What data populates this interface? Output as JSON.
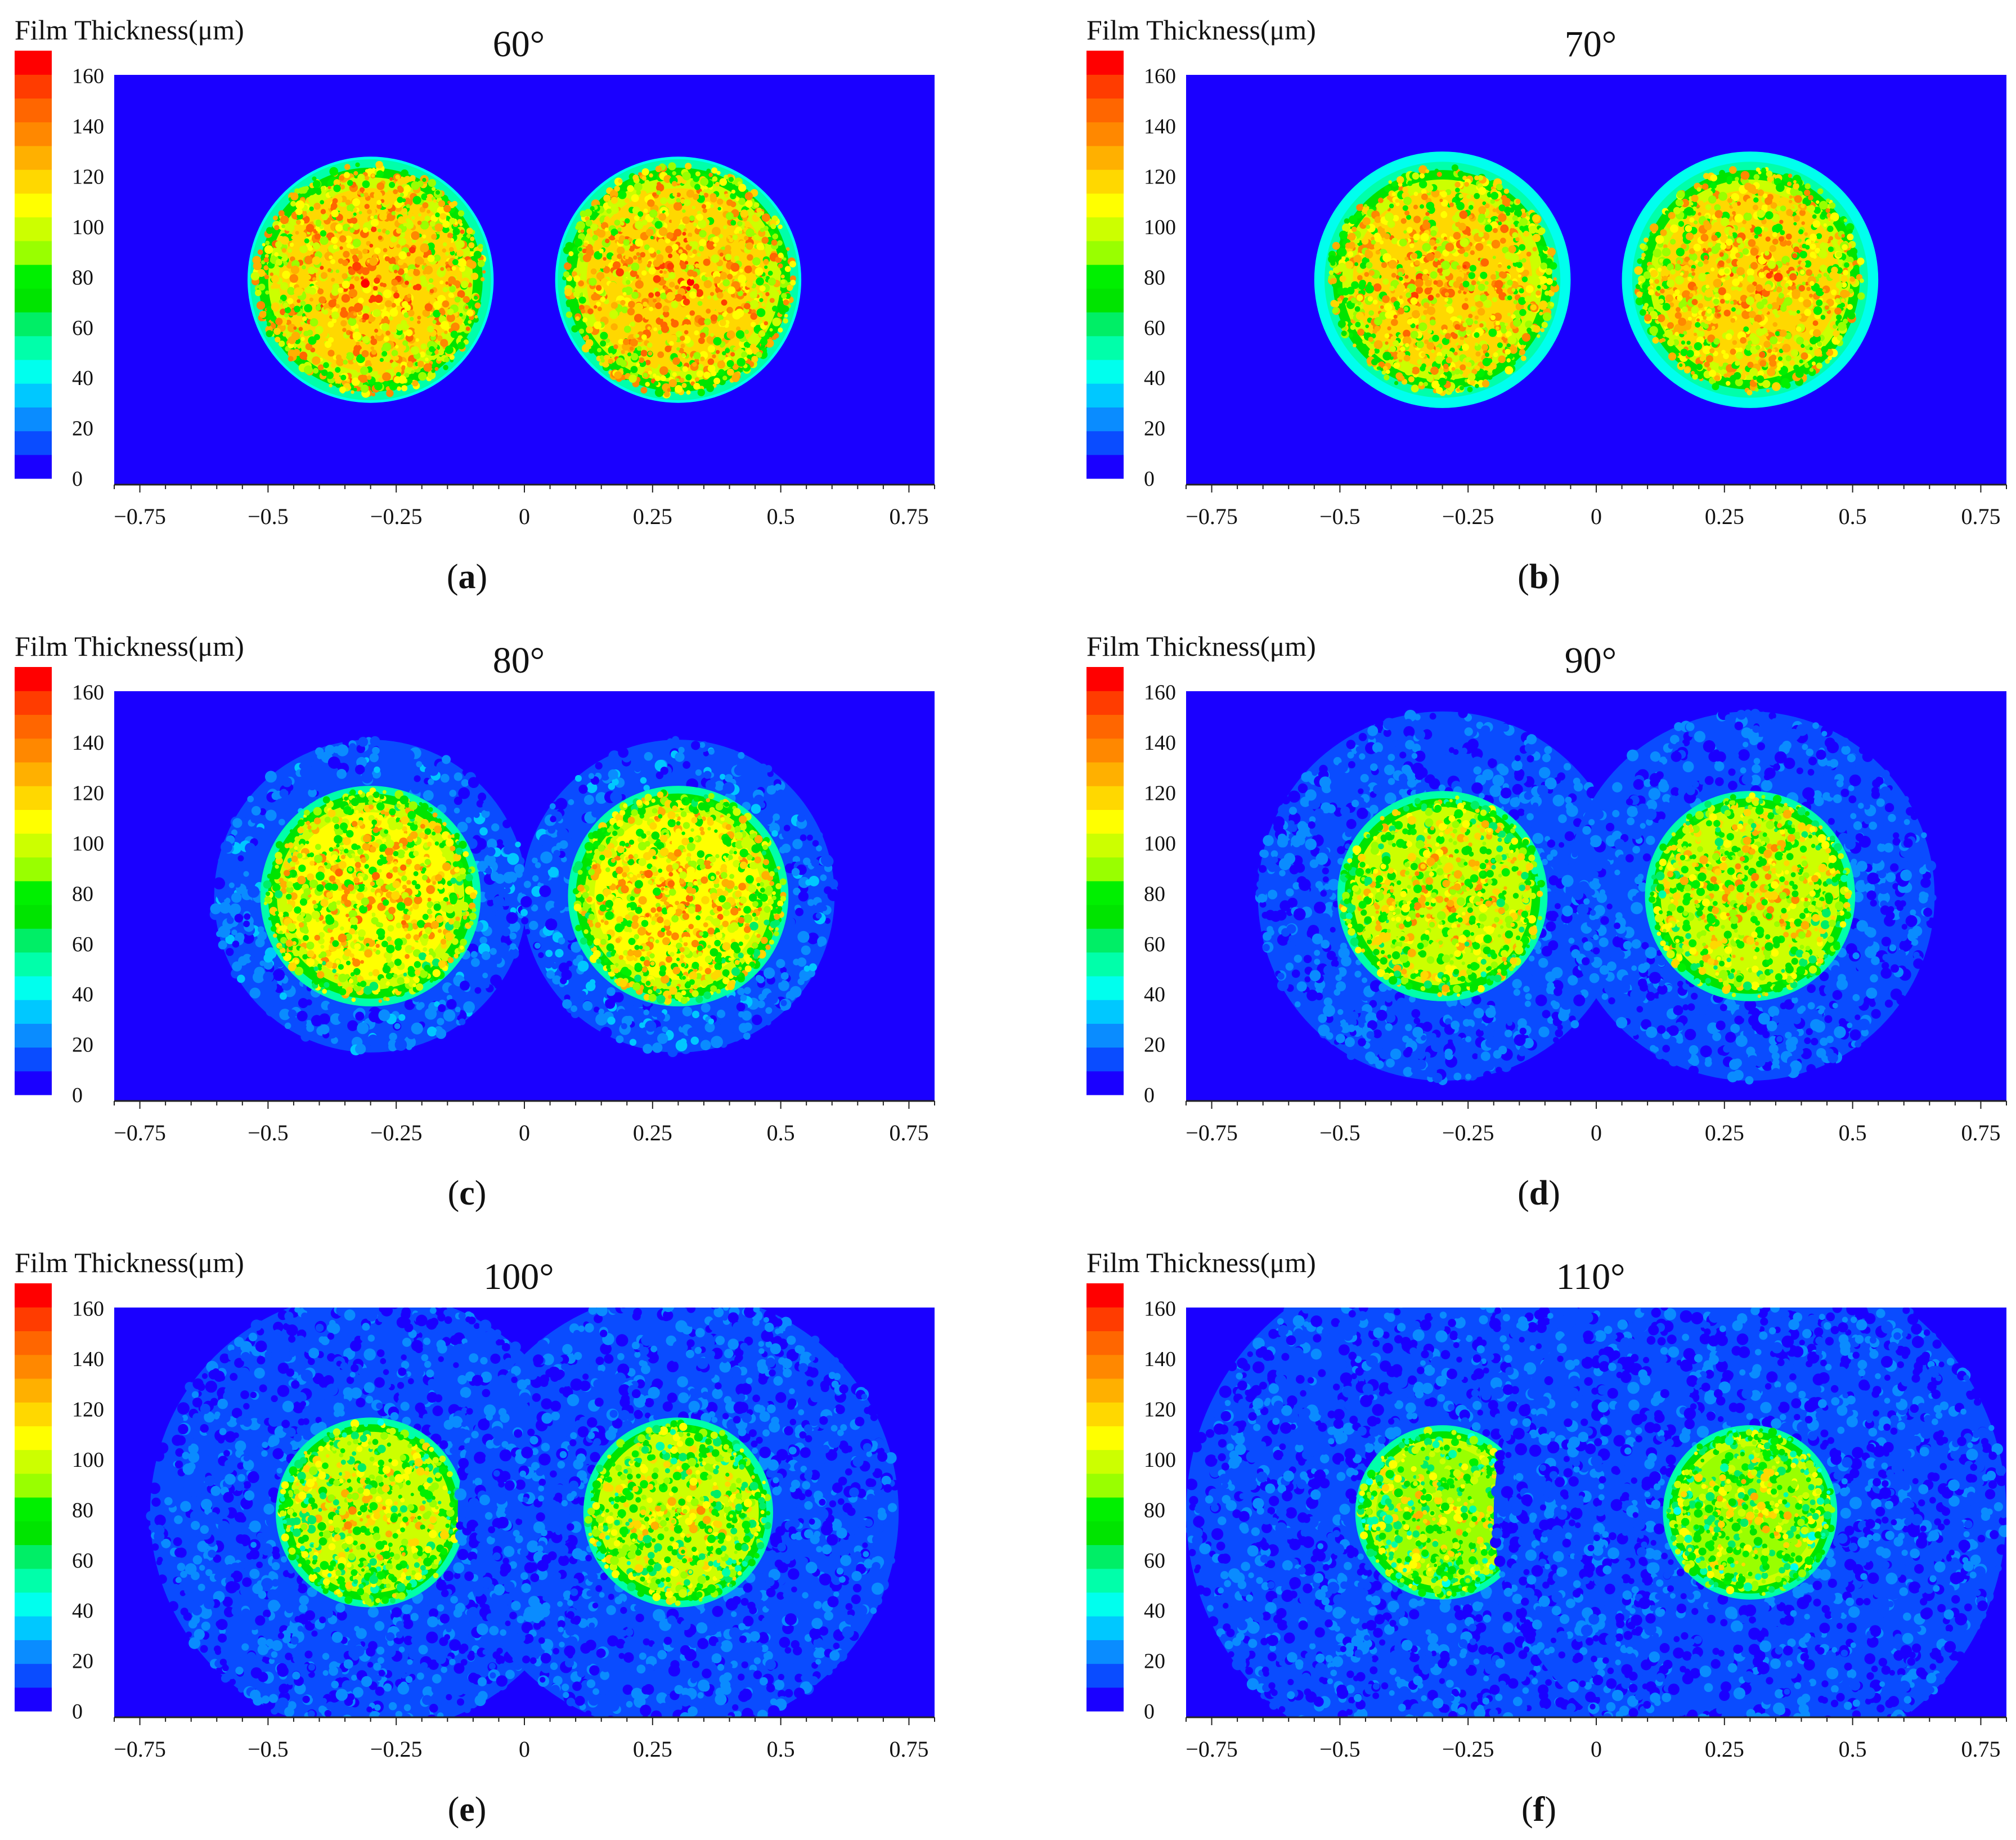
{
  "colorbar": {
    "title": "Film Thickness(μm)",
    "ticks": [
      0,
      20,
      40,
      60,
      80,
      100,
      120,
      140,
      160
    ],
    "range": [
      0,
      170
    ],
    "colors": [
      "#1a00ff",
      "#0a4cff",
      "#0a8cff",
      "#00c8ff",
      "#00ffee",
      "#00ffaa",
      "#00ee66",
      "#00e400",
      "#00f000",
      "#99ff00",
      "#ccff00",
      "#ffff00",
      "#ffd800",
      "#ffb000",
      "#ff8800",
      "#ff6600",
      "#ff3c00",
      "#ff0000"
    ]
  },
  "panels": [
    {
      "angle_label": "60°",
      "caption_letter": "a",
      "outer_radius": 0.24,
      "core_radius": 0.235,
      "core_level": 130,
      "halo_level": 0
    },
    {
      "angle_label": "70°",
      "caption_letter": "b",
      "outer_radius": 0.25,
      "core_radius": 0.23,
      "core_level": 125,
      "halo_level": 0
    },
    {
      "angle_label": "80°",
      "caption_letter": "c",
      "outer_radius": 0.305,
      "core_radius": 0.215,
      "core_level": 118,
      "halo_level": 18
    },
    {
      "angle_label": "90°",
      "caption_letter": "d",
      "outer_radius": 0.36,
      "core_radius": 0.205,
      "core_level": 112,
      "halo_level": 15
    },
    {
      "angle_label": "100°",
      "caption_letter": "e",
      "outer_radius": 0.43,
      "core_radius": 0.185,
      "core_level": 105,
      "halo_level": 14
    },
    {
      "angle_label": "110°",
      "caption_letter": "f",
      "outer_radius": 0.5,
      "core_radius": 0.17,
      "core_level": 100,
      "halo_level": 13
    }
  ],
  "chart_data": {
    "type": "heatmap",
    "title": "",
    "xlabel": "",
    "ylabel": "",
    "x_ticks": [
      -0.75,
      -0.5,
      -0.25,
      0,
      0.25,
      0.5,
      0.75
    ],
    "x_tick_labels": [
      "−0.75",
      "−0.5",
      "−0.25",
      "0",
      "0.25",
      "0.5",
      "0.75"
    ],
    "xlim": [
      -0.8,
      0.8
    ],
    "ylim": [
      -0.4,
      0.4
    ],
    "spray_centers_x": [
      -0.3,
      0.3
    ],
    "value_range": [
      0,
      170
    ],
    "series": [
      {
        "angle": 60,
        "max_film_thickness": 165,
        "typical_core_thickness": 130
      },
      {
        "angle": 70,
        "max_film_thickness": 165,
        "typical_core_thickness": 125
      },
      {
        "angle": 80,
        "max_film_thickness": 160,
        "typical_core_thickness": 118
      },
      {
        "angle": 90,
        "max_film_thickness": 155,
        "typical_core_thickness": 112
      },
      {
        "angle": 100,
        "max_film_thickness": 150,
        "typical_core_thickness": 105
      },
      {
        "angle": 110,
        "max_film_thickness": 145,
        "typical_core_thickness": 100
      }
    ]
  }
}
